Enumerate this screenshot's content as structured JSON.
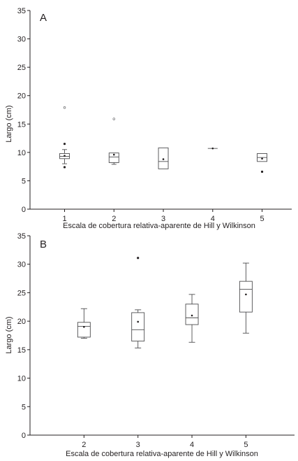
{
  "chart_data": [
    {
      "type": "box",
      "panel_label": "A",
      "xlabel": "Escala de cobertura relativa-aparente de Hill y Wilkinson",
      "ylabel": "Largo (cm)",
      "ylim": [
        0,
        35
      ],
      "yticks": [
        0,
        5,
        10,
        15,
        20,
        25,
        30,
        35
      ],
      "xlim": [
        0.3,
        5.6
      ],
      "grid": false,
      "boxes": [
        {
          "x": 1,
          "label": "1",
          "whisker_low": 8.0,
          "q1": 8.9,
          "median": 9.3,
          "q3": 9.8,
          "whisker_high": 10.5,
          "mean": 9.4,
          "outliers": [
            {
              "value": 17.9,
              "style": "open"
            },
            {
              "value": 11.5,
              "style": "filled"
            },
            {
              "value": 7.4,
              "style": "filled"
            }
          ]
        },
        {
          "x": 2,
          "label": "2",
          "whisker_low": 7.9,
          "q1": 8.2,
          "median": 9.2,
          "q3": 9.9,
          "whisker_high": 9.9,
          "mean": 9.6,
          "outliers": [
            {
              "value": 15.9,
              "style": "open"
            }
          ]
        },
        {
          "x": 3,
          "label": "3",
          "whisker_low": 7.1,
          "q1": 7.1,
          "median": 8.4,
          "q3": 10.8,
          "whisker_high": 10.8,
          "mean": 8.8,
          "outliers": []
        },
        {
          "x": 4,
          "label": "4",
          "whisker_low": 10.7,
          "q1": 10.7,
          "median": 10.7,
          "q3": 10.7,
          "whisker_high": 10.7,
          "mean": 10.7,
          "outliers": []
        },
        {
          "x": 5,
          "label": "5",
          "whisker_low": 8.4,
          "q1": 8.4,
          "median": 9.1,
          "q3": 9.8,
          "whisker_high": 9.8,
          "mean": 8.9,
          "outliers": [
            {
              "value": 6.6,
              "style": "filled"
            }
          ]
        }
      ]
    },
    {
      "type": "box",
      "panel_label": "B",
      "xlabel": "Escala de cobertura relativa-aparente de Hill y Wilkinson",
      "ylabel": "Largo (cm)",
      "ylim": [
        0,
        35
      ],
      "yticks": [
        0,
        5,
        10,
        15,
        20,
        25,
        30,
        35
      ],
      "xlim": [
        1.0,
        5.9
      ],
      "grid": false,
      "boxes": [
        {
          "x": 2,
          "label": "2",
          "whisker_low": 17.0,
          "q1": 17.2,
          "median": 19.1,
          "q3": 19.8,
          "whisker_high": 22.2,
          "mean": 19.0,
          "outliers": []
        },
        {
          "x": 3,
          "label": "3",
          "whisker_low": 15.3,
          "q1": 16.5,
          "median": 18.5,
          "q3": 21.5,
          "whisker_high": 22.0,
          "mean": 19.9,
          "outliers": [
            {
              "value": 31.1,
              "style": "filled"
            }
          ]
        },
        {
          "x": 4,
          "label": "4",
          "whisker_low": 16.3,
          "q1": 19.4,
          "median": 20.6,
          "q3": 23.0,
          "whisker_high": 24.7,
          "mean": 21.0,
          "outliers": []
        },
        {
          "x": 5,
          "label": "5",
          "whisker_low": 17.9,
          "q1": 21.6,
          "median": 25.6,
          "q3": 27.0,
          "whisker_high": 30.2,
          "mean": 24.7,
          "outliers": []
        }
      ]
    }
  ]
}
